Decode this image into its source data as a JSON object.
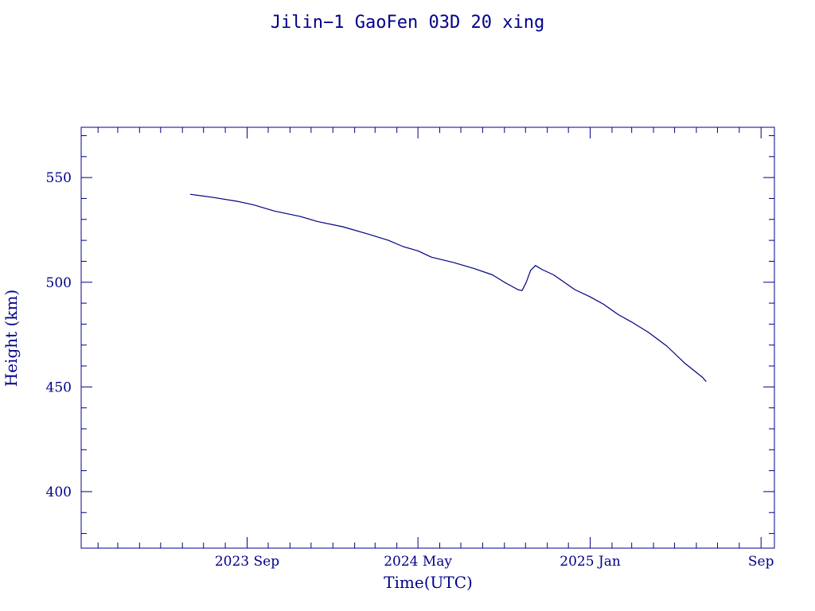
{
  "chart_data": {
    "type": "line",
    "title": "Jilin−1 GaoFen 03D 20 xing",
    "xlabel": "Time(UTC)",
    "ylabel": "Height (km)",
    "x_range": [
      "2023-01-08",
      "2025-09-20"
    ],
    "ylim": [
      373,
      574
    ],
    "y_ticks": [
      400,
      450,
      500,
      550
    ],
    "x_ticks": [
      {
        "date": "2023-09-01",
        "label": "2023 Sep"
      },
      {
        "date": "2024-05-01",
        "label": "2024 May"
      },
      {
        "date": "2025-01-01",
        "label": "2025 Jan"
      },
      {
        "date": "2025-09-01",
        "label": "Sep"
      }
    ],
    "grid": false,
    "series": [
      {
        "color": "#000080",
        "points": [
          [
            "2023-06-12",
            542.0
          ],
          [
            "2023-07-15",
            540.5
          ],
          [
            "2023-08-20",
            538.5
          ],
          [
            "2023-09-10",
            537.0
          ],
          [
            "2023-10-10",
            534.0
          ],
          [
            "2023-11-15",
            531.5
          ],
          [
            "2023-12-10",
            529.0
          ],
          [
            "2024-01-15",
            526.5
          ],
          [
            "2024-02-20",
            523.0
          ],
          [
            "2024-03-20",
            520.0
          ],
          [
            "2024-04-10",
            517.0
          ],
          [
            "2024-05-01",
            515.0
          ],
          [
            "2024-05-20",
            512.0
          ],
          [
            "2024-06-20",
            509.5
          ],
          [
            "2024-07-20",
            506.5
          ],
          [
            "2024-08-15",
            503.5
          ],
          [
            "2024-09-01",
            500.0
          ],
          [
            "2024-09-20",
            496.5
          ],
          [
            "2024-09-26",
            496.0
          ],
          [
            "2024-10-02",
            500.0
          ],
          [
            "2024-10-08",
            505.5
          ],
          [
            "2024-10-15",
            508.0
          ],
          [
            "2024-10-25",
            506.0
          ],
          [
            "2024-11-10",
            503.5
          ],
          [
            "2024-11-25",
            500.0
          ],
          [
            "2024-12-10",
            496.5
          ],
          [
            "2025-01-01",
            493.0
          ],
          [
            "2025-01-20",
            489.5
          ],
          [
            "2025-02-10",
            484.5
          ],
          [
            "2025-03-01",
            481.0
          ],
          [
            "2025-03-25",
            476.0
          ],
          [
            "2025-04-20",
            469.5
          ],
          [
            "2025-05-15",
            461.5
          ],
          [
            "2025-06-10",
            454.5
          ],
          [
            "2025-06-15",
            452.5
          ]
        ]
      }
    ]
  }
}
